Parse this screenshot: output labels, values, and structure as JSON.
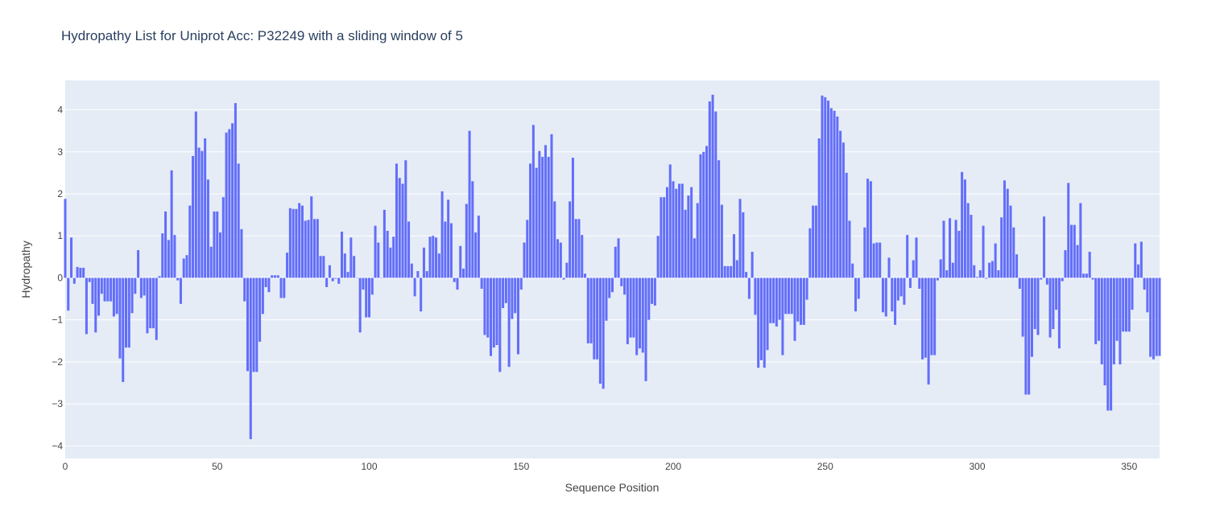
{
  "chart_data": {
    "type": "bar",
    "title": "Hydropathy List for Uniprot Acc: P32249 with a sliding window of 5",
    "xlabel": "Sequence Position",
    "ylabel": "Hydropathy",
    "xlim": [
      0,
      360
    ],
    "ylim": [
      -4.3,
      4.7
    ],
    "xticks": [
      0,
      50,
      100,
      150,
      200,
      250,
      300,
      350
    ],
    "xtick_labels": [
      "0",
      "50",
      "100",
      "150",
      "200",
      "250",
      "300",
      "350"
    ],
    "yticks": [
      -4,
      -3,
      -2,
      -1,
      0,
      1,
      2,
      3,
      4
    ],
    "ytick_labels": [
      "−4",
      "−3",
      "−2",
      "−1",
      "0",
      "1",
      "2",
      "3",
      "4"
    ],
    "grid": true,
    "colors": {
      "bar": "#636efa",
      "plot_bg": "#e5ecf6",
      "title": "#2a3f5f",
      "axis_text": "#444444"
    },
    "x_start": 0,
    "values": [
      1.88,
      -0.78,
      0.96,
      -0.14,
      0.26,
      0.24,
      0.24,
      -1.34,
      -0.1,
      -0.62,
      -1.3,
      -0.9,
      -0.38,
      -0.56,
      -0.56,
      -0.56,
      -0.92,
      -0.86,
      -1.92,
      -2.48,
      -1.66,
      -1.66,
      -0.84,
      -0.38,
      0.66,
      -0.48,
      -0.42,
      -1.32,
      -1.2,
      -1.2,
      -1.48,
      0.04,
      1.06,
      1.58,
      0.9,
      2.56,
      1.02,
      -0.06,
      -0.62,
      0.46,
      0.54,
      1.72,
      2.9,
      3.96,
      3.1,
      3.02,
      3.32,
      2.34,
      0.74,
      1.58,
      1.58,
      1.08,
      1.92,
      3.46,
      3.54,
      3.68,
      4.16,
      2.72,
      1.16,
      -0.56,
      -2.22,
      -3.84,
      -2.24,
      -2.24,
      -1.52,
      -0.86,
      -0.22,
      -0.34,
      0.06,
      0.06,
      0.06,
      -0.48,
      -0.48,
      0.6,
      1.66,
      1.64,
      1.64,
      1.78,
      1.72,
      1.36,
      1.38,
      1.94,
      1.4,
      1.4,
      0.52,
      0.52,
      -0.22,
      0.3,
      -0.08,
      -0.02,
      -0.14,
      1.1,
      0.58,
      0.14,
      0.96,
      0.52,
      0.0,
      -1.3,
      -0.28,
      -0.94,
      -0.94,
      -0.4,
      1.24,
      0.84,
      0.0,
      1.62,
      1.12,
      0.72,
      0.98,
      2.72,
      2.38,
      2.24,
      2.8,
      1.34,
      0.34,
      -0.44,
      0.16,
      -0.8,
      0.72,
      0.16,
      0.98,
      1.0,
      0.96,
      0.58,
      2.06,
      1.34,
      1.86,
      1.3,
      -0.1,
      -0.28,
      0.76,
      0.22,
      1.76,
      3.5,
      2.3,
      1.08,
      1.48,
      -0.26,
      -1.36,
      -1.42,
      -1.86,
      -1.66,
      -1.6,
      -2.24,
      -0.72,
      -0.6,
      -2.12,
      -0.98,
      -0.84,
      -1.82,
      -0.28,
      0.84,
      1.38,
      2.72,
      3.64,
      2.62,
      3.02,
      2.88,
      3.16,
      2.88,
      3.42,
      1.82,
      0.92,
      0.84,
      -0.04,
      0.36,
      1.82,
      2.86,
      1.4,
      1.4,
      1.02,
      0.1,
      -1.56,
      -1.56,
      -1.94,
      -1.94,
      -2.52,
      -2.64,
      -1.02,
      -0.48,
      -0.34,
      0.74,
      0.94,
      -0.2,
      -0.4,
      -1.58,
      -1.42,
      -1.42,
      -1.84,
      -1.68,
      -1.78,
      -2.46,
      -1.0,
      -0.62,
      -0.66,
      1.0,
      1.92,
      1.92,
      2.16,
      2.7,
      2.3,
      2.12,
      2.24,
      2.24,
      1.62,
      1.96,
      2.16,
      0.94,
      1.78,
      2.94,
      3.0,
      3.14,
      4.2,
      4.36,
      3.96,
      2.8,
      1.74,
      0.28,
      0.28,
      0.28,
      1.04,
      0.42,
      1.88,
      1.56,
      0.14,
      -0.5,
      0.62,
      -0.88,
      -2.14,
      -1.96,
      -2.14,
      -1.72,
      -1.08,
      -1.08,
      -1.16,
      -1.0,
      -1.84,
      -0.86,
      -0.86,
      -0.86,
      -1.5,
      -1.04,
      -1.12,
      -1.12,
      -0.52,
      1.18,
      1.72,
      1.72,
      3.32,
      4.34,
      4.3,
      4.22,
      4.04,
      3.98,
      3.84,
      3.5,
      3.22,
      2.5,
      1.36,
      0.34,
      -0.8,
      -0.5,
      0.0,
      1.2,
      2.36,
      2.3,
      0.82,
      0.84,
      0.84,
      -0.82,
      -0.92,
      0.48,
      -0.8,
      -1.12,
      -0.54,
      -0.44,
      -0.64,
      1.02,
      -0.24,
      0.42,
      0.96,
      -0.26,
      -1.94,
      -1.9,
      -2.54,
      -1.84,
      -1.84,
      -0.06,
      0.44,
      1.36,
      0.18,
      1.42,
      0.36,
      1.38,
      1.12,
      2.52,
      2.34,
      1.78,
      1.5,
      0.3,
      0.02,
      0.18,
      1.24,
      -0.02,
      0.36,
      0.4,
      0.82,
      0.18,
      1.44,
      2.32,
      2.12,
      1.72,
      1.2,
      0.56,
      -0.26,
      -1.4,
      -2.78,
      -2.78,
      -1.88,
      -1.22,
      -1.36,
      -0.04,
      1.46,
      -0.16,
      -1.42,
      -1.22,
      -0.76,
      -1.68,
      -0.08,
      0.66,
      2.26,
      1.26,
      1.26,
      0.78,
      1.78,
      0.1,
      0.1,
      0.62,
      -0.04,
      -1.58,
      -1.5,
      -2.06,
      -2.56,
      -3.16,
      -3.16,
      -2.06,
      -1.5,
      -2.06,
      -1.28,
      -1.28,
      -1.28,
      -0.76,
      0.82,
      0.32,
      0.86,
      -0.28,
      -0.82,
      -1.88,
      -1.94,
      -1.86,
      -1.86
    ]
  }
}
